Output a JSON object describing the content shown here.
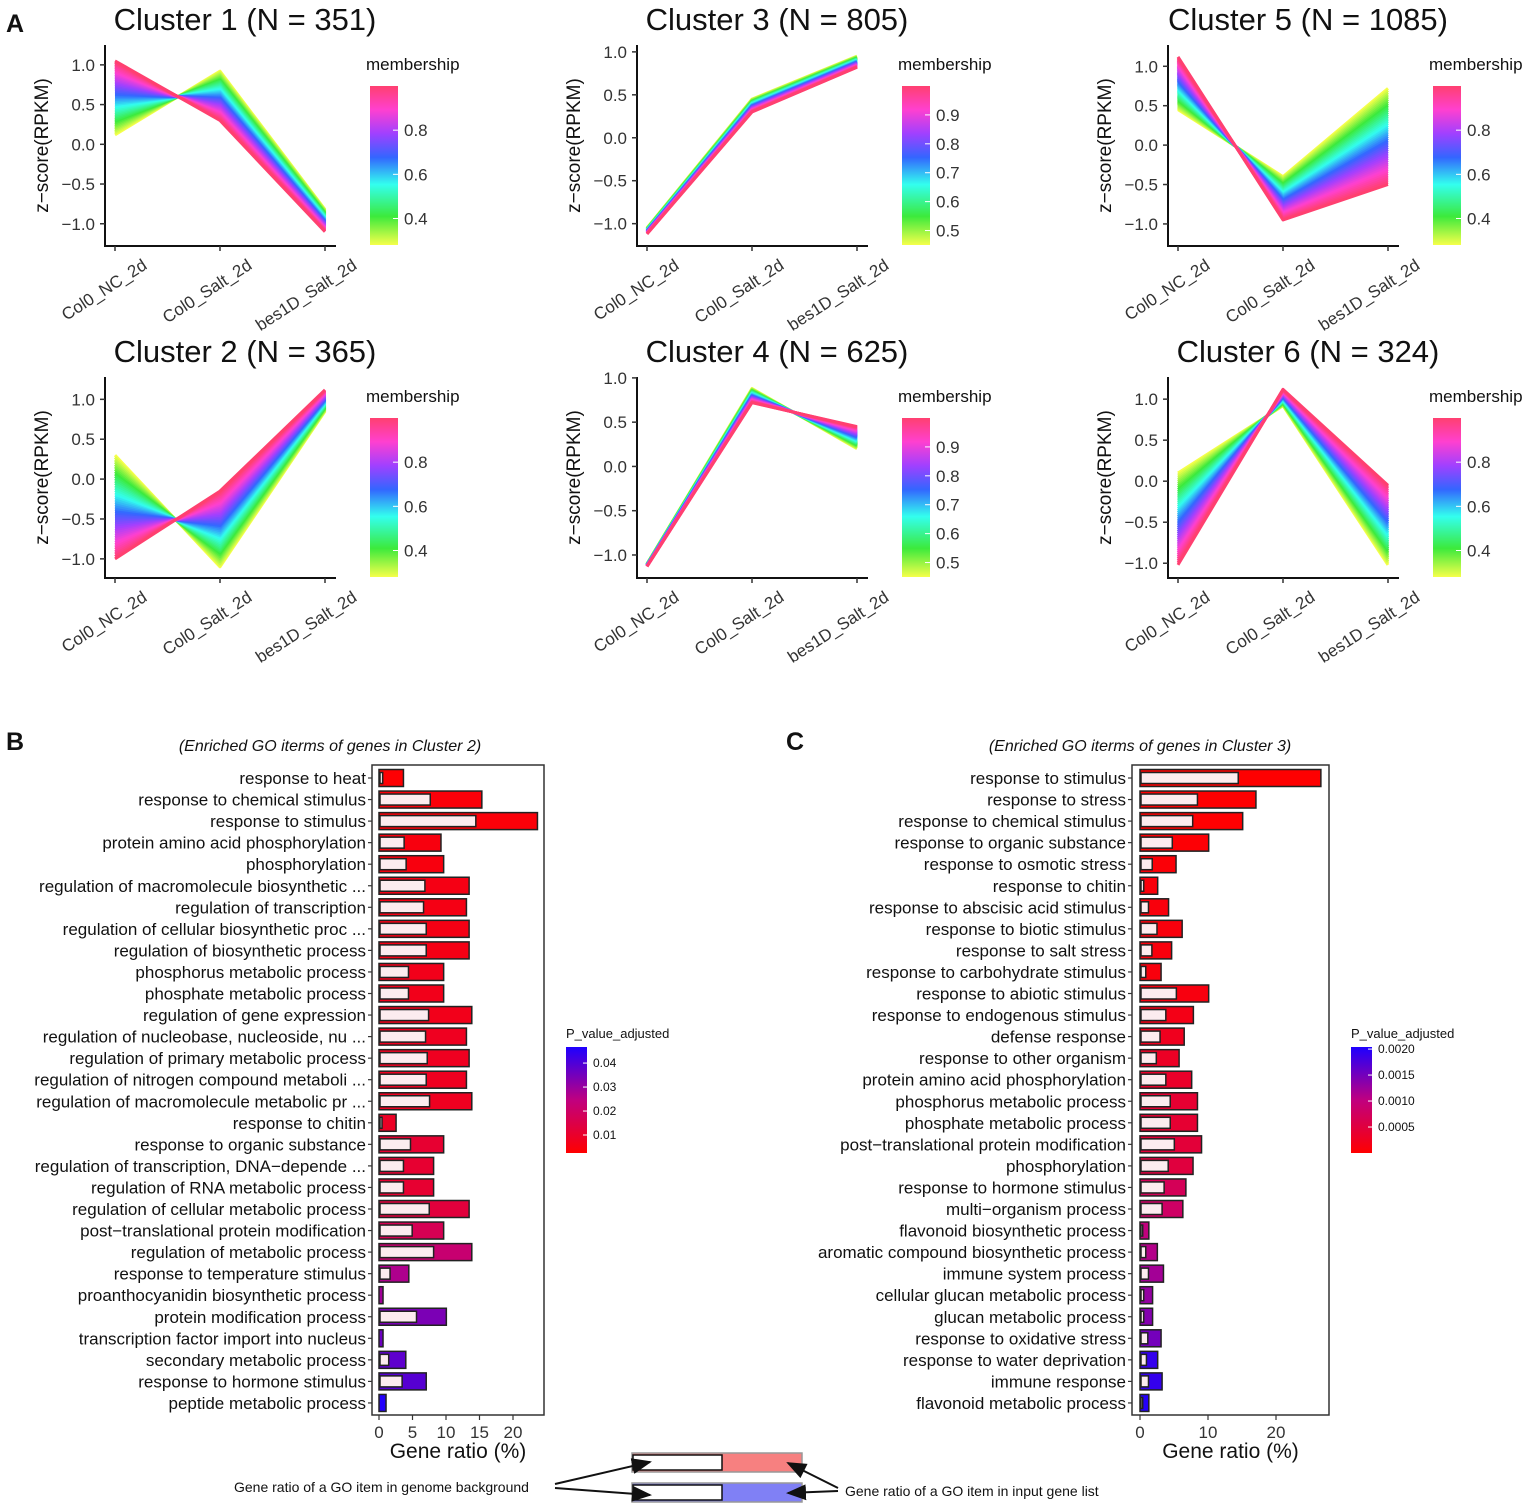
{
  "panel_labels": {
    "a": "A",
    "b": "B",
    "c": "C"
  },
  "chart_data": {
    "clusters": {
      "type": "line",
      "x": [
        "Col0_NC_2d",
        "Col0_Salt_2d",
        "bes1D_Salt_2d"
      ],
      "ylabel": "z−score(RPKM)",
      "yticks": [
        -1.0,
        -0.5,
        0.0,
        0.5,
        1.0
      ],
      "ytick_labels": [
        "−1.0",
        "−0.5",
        "0.0",
        "0.5",
        "1.0"
      ],
      "legend_title": "membership",
      "panels": [
        {
          "title": "Cluster 1 (N = 351)",
          "ylim": [
            -1.28,
            1.25
          ],
          "membership_range": [
            0.28,
            1.0
          ],
          "legend_ticks": [
            0.4,
            0.6,
            0.8
          ],
          "legend_tick_labels": [
            "0.4",
            "0.6",
            "0.8"
          ],
          "profile_high_membership": [
            1.05,
            0.3,
            -1.1
          ],
          "profile_low_membership": [
            0.12,
            0.92,
            -0.82
          ]
        },
        {
          "title": "Cluster 3 (N = 805)",
          "ylim": [
            -1.26,
            1.08
          ],
          "membership_range": [
            0.45,
            1.0
          ],
          "legend_ticks": [
            0.5,
            0.6,
            0.7,
            0.8,
            0.9
          ],
          "legend_tick_labels": [
            "0.5",
            "0.6",
            "0.7",
            "0.8",
            "0.9"
          ],
          "profile_high_membership": [
            -1.12,
            0.3,
            0.82
          ],
          "profile_low_membership": [
            -1.05,
            0.45,
            0.95
          ]
        },
        {
          "title": "Cluster 5 (N = 1085)",
          "ylim": [
            -1.28,
            1.27
          ],
          "membership_range": [
            0.28,
            1.0
          ],
          "legend_ticks": [
            0.4,
            0.6,
            0.8
          ],
          "legend_tick_labels": [
            "0.4",
            "0.6",
            "0.8"
          ],
          "profile_high_membership": [
            1.12,
            -0.95,
            -0.5
          ],
          "profile_low_membership": [
            0.45,
            -0.4,
            0.72
          ]
        },
        {
          "title": "Cluster 2 (N = 365)",
          "ylim": [
            -1.24,
            1.28
          ],
          "membership_range": [
            0.28,
            1.0
          ],
          "legend_ticks": [
            0.4,
            0.6,
            0.8
          ],
          "legend_tick_labels": [
            "0.4",
            "0.6",
            "0.8"
          ],
          "profile_high_membership": [
            -1.0,
            -0.15,
            1.12
          ],
          "profile_low_membership": [
            0.3,
            -1.1,
            0.85
          ]
        },
        {
          "title": "Cluster 4 (N = 625)",
          "ylim": [
            -1.26,
            1.01
          ],
          "membership_range": [
            0.45,
            1.0
          ],
          "legend_ticks": [
            0.5,
            0.6,
            0.7,
            0.8,
            0.9
          ],
          "legend_tick_labels": [
            "0.5",
            "0.6",
            "0.7",
            "0.8",
            "0.9"
          ],
          "profile_high_membership": [
            -1.13,
            0.72,
            0.45
          ],
          "profile_low_membership": [
            -1.1,
            0.88,
            0.2
          ]
        },
        {
          "title": "Cluster 6 (N = 324)",
          "ylim": [
            -1.18,
            1.27
          ],
          "membership_range": [
            0.28,
            1.0
          ],
          "legend_ticks": [
            0.4,
            0.6,
            0.8
          ],
          "legend_tick_labels": [
            "0.4",
            "0.6",
            "0.8"
          ],
          "profile_high_membership": [
            -1.02,
            1.12,
            -0.05
          ],
          "profile_low_membership": [
            0.1,
            0.92,
            -1.02
          ]
        }
      ]
    },
    "go_b": {
      "type": "bar",
      "title": "(Enriched GO iterms of genes in Cluster 2)",
      "xlabel": "Gene ratio (%)",
      "xticks": [
        0,
        5,
        10,
        15,
        20
      ],
      "xtick_labels": [
        "0",
        "5",
        "10",
        "15",
        "20"
      ],
      "legend_title": "P_value_adjusted",
      "legend_range": [
        0.0025,
        0.0467
      ],
      "legend_ticks": [
        0.01,
        0.02,
        0.03,
        0.04
      ],
      "legend_tick_labels": [
        "0.01",
        "0.02",
        "0.03",
        "0.04"
      ],
      "categories": [
        "response to heat",
        "response to chemical stimulus",
        "response to stimulus",
        "protein amino acid phosphorylation",
        "phosphorylation",
        "regulation of macromolecule biosynthetic ...",
        "regulation of transcription",
        "regulation of cellular biosynthetic proc ...",
        "regulation of biosynthetic process",
        "phosphorus metabolic process",
        "phosphate metabolic process",
        "regulation of gene expression",
        "regulation of nucleobase, nucleoside, nu ...",
        "regulation of primary metabolic process",
        "regulation of nitrogen compound metaboli ...",
        "regulation of macromolecule metabolic pr ...",
        "response to chitin",
        "response to organic substance",
        "regulation of transcription, DNA−depende ...",
        "regulation of RNA metabolic process",
        "regulation of cellular metabolic process",
        "post−translational protein modification",
        "regulation of metabolic process",
        "response to temperature stimulus",
        "proanthocyanidin biosynthetic process",
        "protein modification process",
        "transcription factor import into nucleus",
        "secondary metabolic process",
        "response to hormone stimulus",
        "peptide metabolic process"
      ],
      "input_ratio": [
        3.65,
        15.35,
        23.65,
        9.25,
        9.65,
        13.45,
        13.05,
        13.45,
        13.45,
        9.65,
        9.65,
        13.85,
        13.05,
        13.45,
        13.05,
        13.85,
        2.55,
        9.65,
        8.15,
        8.15,
        13.45,
        9.65,
        13.85,
        4.45,
        0.6,
        10.05,
        0.6,
        4.0,
        7.05,
        1.05
      ],
      "background_ratio": [
        0.4,
        7.5,
        14.3,
        3.6,
        3.9,
        6.7,
        6.5,
        6.9,
        6.9,
        4.25,
        4.25,
        7.25,
        6.8,
        7.05,
        6.9,
        7.4,
        0.3,
        4.55,
        3.5,
        3.5,
        7.35,
        4.8,
        8.0,
        1.5,
        0.0,
        5.45,
        0.0,
        1.3,
        3.3,
        0.0
      ],
      "p_adjusted": [
        0.003,
        0.004,
        0.004,
        0.005,
        0.005,
        0.006,
        0.006,
        0.006,
        0.006,
        0.007,
        0.007,
        0.007,
        0.008,
        0.008,
        0.008,
        0.008,
        0.009,
        0.011,
        0.011,
        0.011,
        0.013,
        0.017,
        0.022,
        0.027,
        0.029,
        0.034,
        0.036,
        0.038,
        0.039,
        0.046
      ]
    },
    "go_c": {
      "type": "bar",
      "title": "(Enriched GO iterms of genes in Cluster 3)",
      "xlabel": "Gene ratio (%)",
      "xticks": [
        0,
        10,
        20
      ],
      "xtick_labels": [
        "0",
        "10",
        "20"
      ],
      "legend_title": "P_value_adjusted",
      "legend_range": [
        0.0,
        0.00204
      ],
      "legend_ticks": [
        0.0005,
        0.001,
        0.0015,
        0.002
      ],
      "legend_tick_labels": [
        "0.0005",
        "0.0010",
        "0.0015",
        "0.0020"
      ],
      "categories": [
        "response to stimulus",
        "response to stress",
        "response to chemical stimulus",
        "response to organic substance",
        "response to osmotic stress",
        "response to chitin",
        "response to abscisic acid stimulus",
        "response to biotic stimulus",
        "response to salt stress",
        "response to carbohydrate stimulus",
        "response to abiotic stimulus",
        "response to endogenous stimulus",
        "defense response",
        "response to other organism",
        "protein amino acid phosphorylation",
        "phosphorus metabolic process",
        "phosphate metabolic process",
        "post−translational protein modification",
        "phosphorylation",
        "response to hormone stimulus",
        "multi−organism process",
        "flavonoid biosynthetic process",
        "aromatic compound biosynthetic process",
        "immune system process",
        "cellular glucan metabolic process",
        "glucan metabolic process",
        "response to oxidative stress",
        "response to water deprivation",
        "immune response",
        "flavonoid metabolic process"
      ],
      "input_ratio": [
        26.6,
        17.05,
        15.1,
        10.1,
        5.3,
        2.6,
        4.2,
        6.2,
        4.65,
        3.1,
        10.1,
        7.85,
        6.5,
        5.75,
        7.6,
        8.45,
        8.45,
        9.05,
        7.8,
        6.75,
        6.3,
        1.3,
        2.55,
        3.45,
        1.85,
        1.85,
        3.1,
        2.6,
        3.25,
        1.3
      ],
      "background_ratio": [
        14.3,
        8.3,
        7.6,
        4.6,
        1.65,
        0.4,
        1.1,
        2.35,
        1.6,
        0.7,
        5.2,
        3.65,
        2.8,
        2.25,
        3.65,
        4.3,
        4.3,
        4.9,
        4.0,
        3.4,
        3.1,
        0.25,
        0.7,
        1.1,
        0.4,
        0.4,
        1.0,
        0.8,
        1.1,
        0.25
      ],
      "p_adjusted": [
        1e-05,
        1e-05,
        2e-05,
        4e-05,
        6e-05,
        8e-05,
        0.0001,
        0.0001,
        0.0001,
        0.0001,
        0.00012,
        0.00018,
        0.00024,
        0.0003,
        0.00034,
        0.0004,
        0.0004,
        0.00046,
        0.0005,
        0.0007,
        0.0008,
        0.001,
        0.0011,
        0.0012,
        0.0013,
        0.0014,
        0.0015,
        0.0019,
        0.0019,
        0.002
      ]
    }
  },
  "legend_key": {
    "background_label": "Gene ratio of a GO item in genome background",
    "input_label": "Gene ratio of a GO item in input gene list",
    "red_color": "#f78080",
    "blue_color": "#8080f5"
  }
}
